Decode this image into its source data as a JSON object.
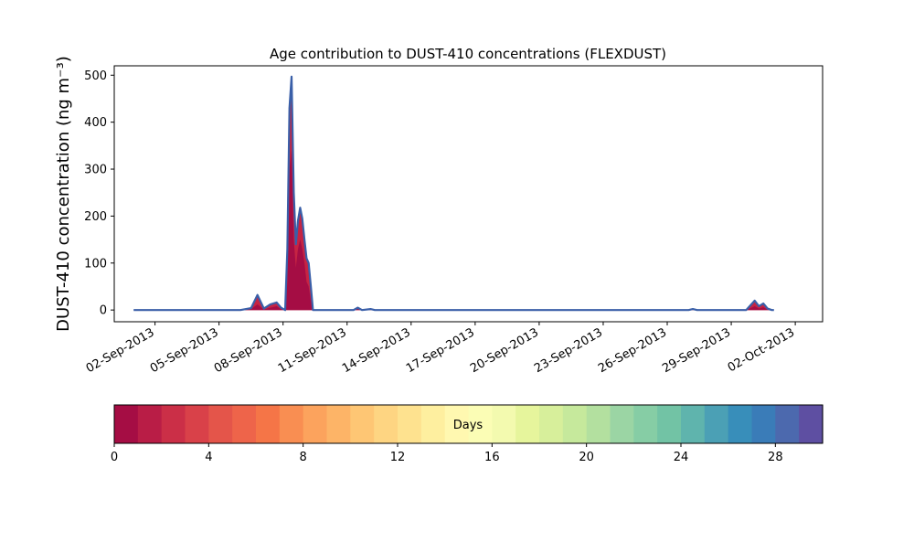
{
  "chart_data": {
    "type": "area",
    "title": "Age contribution to DUST-410 concentrations (FLEXDUST)",
    "ylabel": "DUST-410 concentration (ng m⁻³)",
    "xlabel": "",
    "ylim": [
      -25,
      520
    ],
    "yticks": [
      0,
      100,
      200,
      300,
      400,
      500
    ],
    "x_start": "31-Aug-2013",
    "x_range": [
      "31-Aug-2013",
      "03-Oct-2013"
    ],
    "xtick_labels": [
      "02-Sep-2013",
      "05-Sep-2013",
      "08-Sep-2013",
      "11-Sep-2013",
      "14-Sep-2013",
      "17-Sep-2013",
      "20-Sep-2013",
      "23-Sep-2013",
      "26-Sep-2013",
      "29-Sep-2013",
      "02-Oct-2013"
    ],
    "total_series": {
      "name": "",
      "points": [
        [
          "01-Sep-2013",
          0
        ],
        [
          "06-Sep-2013",
          0
        ],
        [
          "06-Sep-2013 12:00",
          4
        ],
        [
          "06-Sep-2013 19:12",
          32
        ],
        [
          "07-Sep-2013 02:24",
          3
        ],
        [
          "07-Sep-2013 09:36",
          12
        ],
        [
          "07-Sep-2013 16:48",
          16
        ],
        [
          "07-Sep-2013 21:36",
          5
        ],
        [
          "08-Sep-2013 02:24",
          0
        ],
        [
          "08-Sep-2013 04:48",
          130
        ],
        [
          "08-Sep-2013 07:12",
          430
        ],
        [
          "08-Sep-2013 09:36",
          497
        ],
        [
          "08-Sep-2013 12:00",
          250
        ],
        [
          "08-Sep-2013 14:24",
          140
        ],
        [
          "08-Sep-2013 16:48",
          190
        ],
        [
          "08-Sep-2013 19:12",
          218
        ],
        [
          "08-Sep-2013 21:36",
          195
        ],
        [
          "09-Sep-2013",
          150
        ],
        [
          "09-Sep-2013 02:24",
          110
        ],
        [
          "09-Sep-2013 04:48",
          100
        ],
        [
          "09-Sep-2013 07:12",
          50
        ],
        [
          "09-Sep-2013 09:36",
          0
        ],
        [
          "11-Sep-2013 07:12",
          0
        ],
        [
          "11-Sep-2013 12:00",
          5
        ],
        [
          "11-Sep-2013 16:48",
          0
        ],
        [
          "12-Sep-2013 02:24",
          2
        ],
        [
          "12-Sep-2013 07:12",
          0
        ],
        [
          "27-Sep-2013",
          0
        ],
        [
          "27-Sep-2013 04:48",
          2
        ],
        [
          "27-Sep-2013 09:36",
          0
        ],
        [
          "29-Sep-2013 16:48",
          0
        ],
        [
          "30-Sep-2013 02:24",
          20
        ],
        [
          "30-Sep-2013 07:12",
          8
        ],
        [
          "30-Sep-2013 12:00",
          14
        ],
        [
          "30-Sep-2013 16:48",
          3
        ],
        [
          "30-Sep-2013 21:36",
          0
        ],
        [
          "01-Oct-2013",
          0
        ]
      ]
    },
    "fresh_fraction": {
      "name": "",
      "points": [
        [
          "01-Sep-2013",
          0
        ],
        [
          "06-Sep-2013",
          0
        ],
        [
          "06-Sep-2013 12:00",
          2
        ],
        [
          "06-Sep-2013 19:12",
          12
        ],
        [
          "07-Sep-2013 02:24",
          1
        ],
        [
          "07-Sep-2013 09:36",
          5
        ],
        [
          "07-Sep-2013 16:48",
          8
        ],
        [
          "07-Sep-2013 21:36",
          2
        ],
        [
          "08-Sep-2013 02:24",
          0
        ],
        [
          "08-Sep-2013 04:48",
          60
        ],
        [
          "08-Sep-2013 07:12",
          300
        ],
        [
          "08-Sep-2013 09:36",
          340
        ],
        [
          "08-Sep-2013 12:00",
          150
        ],
        [
          "08-Sep-2013 14:24",
          90
        ],
        [
          "08-Sep-2013 16:48",
          130
        ],
        [
          "08-Sep-2013 19:12",
          150
        ],
        [
          "08-Sep-2013 21:36",
          130
        ],
        [
          "09-Sep-2013",
          100
        ],
        [
          "09-Sep-2013 02:24",
          60
        ],
        [
          "09-Sep-2013 04:48",
          50
        ],
        [
          "09-Sep-2013 07:12",
          20
        ],
        [
          "09-Sep-2013 09:36",
          0
        ],
        [
          "11-Sep-2013 07:12",
          0
        ],
        [
          "11-Sep-2013 12:00",
          2
        ],
        [
          "11-Sep-2013 16:48",
          0
        ],
        [
          "29-Sep-2013 16:48",
          0
        ],
        [
          "30-Sep-2013 02:24",
          8
        ],
        [
          "30-Sep-2013 07:12",
          3
        ],
        [
          "30-Sep-2013 12:00",
          6
        ],
        [
          "30-Sep-2013 16:48",
          1
        ],
        [
          "30-Sep-2013 21:36",
          0
        ],
        [
          "01-Oct-2013",
          0
        ]
      ]
    },
    "colorbar": {
      "label": "Days",
      "range": [
        0,
        30
      ],
      "ticks": [
        0,
        4,
        8,
        12,
        16,
        20,
        24,
        28
      ],
      "colors": [
        "#a50d44",
        "#b91d46",
        "#cb2f47",
        "#d94149",
        "#e4554a",
        "#ee644a",
        "#f57547",
        "#f98e52",
        "#fca35d",
        "#fdb467",
        "#fec674",
        "#fed582",
        "#fee28f",
        "#feef9f",
        "#fff8b0",
        "#fbfdb5",
        "#f3faaf",
        "#e6f59c",
        "#d7ef9b",
        "#c6e99c",
        "#b3e09f",
        "#9bd5a4",
        "#86cda5",
        "#72c3a5",
        "#5fb4ad",
        "#4ba0b5",
        "#388eba",
        "#3a7cb8",
        "#4c69ae",
        "#5e4fa2"
      ]
    },
    "colors": {
      "outline": "#3a5fa8",
      "inner_fill": "#c2183f",
      "core_fill": "#a50d44"
    }
  }
}
